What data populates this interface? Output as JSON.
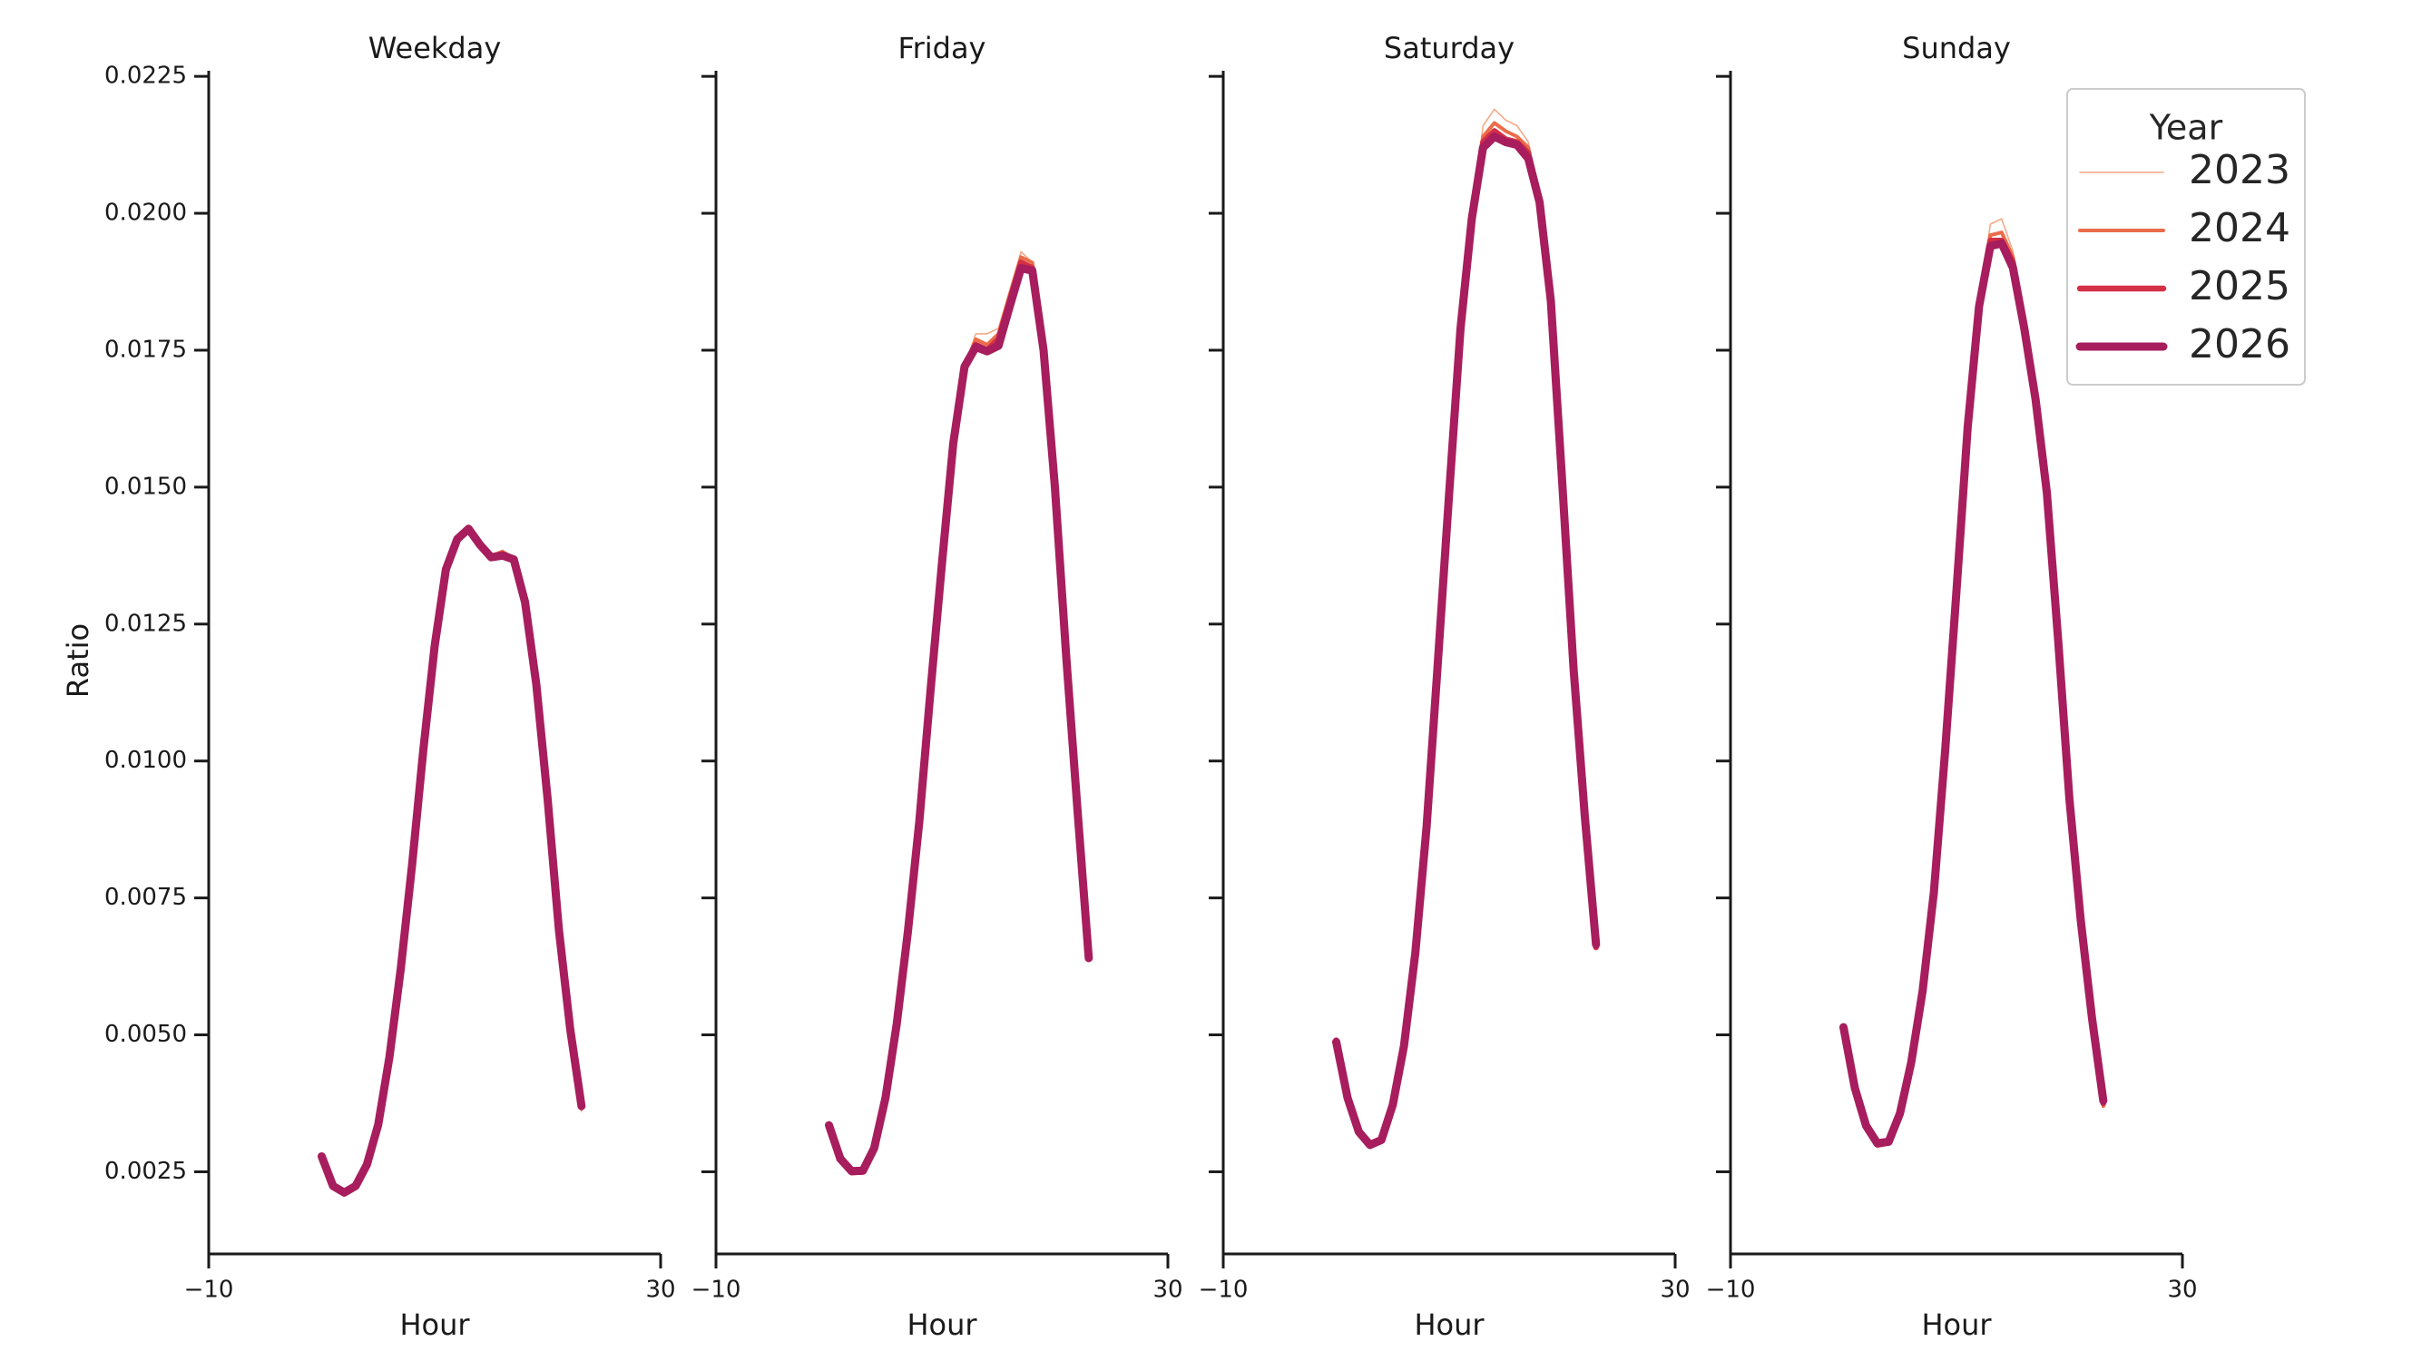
{
  "chart_data": {
    "type": "line",
    "ylabel": "Ratio",
    "xlabel": "Hour",
    "xlim": [
      -10,
      30
    ],
    "ylim": [
      0.001,
      0.0229
    ],
    "x_ticks": [
      -10,
      30
    ],
    "x_tick_labels": [
      "−10",
      "30"
    ],
    "y_ticks": [
      0.0025,
      0.005,
      0.0075,
      0.01,
      0.0125,
      0.015,
      0.0175,
      0.02,
      0.0225
    ],
    "y_tick_labels": [
      "0.0025",
      "0.0050",
      "0.0075",
      "0.0100",
      "0.0125",
      "0.0150",
      "0.0175",
      "0.0200",
      "0.0225"
    ],
    "grid": false,
    "legend": {
      "title": "Year",
      "placement": "top-right",
      "entries": [
        {
          "name": "2023",
          "color": "#f3a583",
          "width": 1.6
        },
        {
          "name": "2024",
          "color": "#ec6b49",
          "width": 4.0
        },
        {
          "name": "2025",
          "color": "#d42f45",
          "width": 6.5
        },
        {
          "name": "2026",
          "color": "#a71d5d",
          "width": 9.0
        }
      ]
    },
    "x": [
      0,
      1,
      2,
      3,
      4,
      5,
      6,
      7,
      8,
      9,
      10,
      11,
      12,
      13,
      14,
      15,
      16,
      17,
      18,
      19,
      20,
      21,
      22,
      23
    ],
    "panels": [
      {
        "title": "Weekday",
        "series": [
          {
            "name": "2023",
            "values": [
              0.0028,
              0.00228,
              0.00208,
              0.00222,
              0.00262,
              0.00338,
              0.0046,
              0.0062,
              0.0081,
              0.0102,
              0.0121,
              0.0135,
              0.01406,
              0.0142,
              0.014,
              0.01375,
              0.01385,
              0.0137,
              0.0128,
              0.0113,
              0.0093,
              0.0069,
              0.0051,
              0.0036
            ]
          },
          {
            "name": "2024",
            "values": [
              0.0028,
              0.00226,
              0.0021,
              0.00222,
              0.00262,
              0.00337,
              0.0046,
              0.0062,
              0.0081,
              0.0102,
              0.0121,
              0.0135,
              0.01406,
              0.01422,
              0.014,
              0.01375,
              0.01382,
              0.0137,
              0.0129,
              0.0114,
              0.0093,
              0.0069,
              0.0051,
              0.00365
            ]
          },
          {
            "name": "2025",
            "values": [
              0.00279,
              0.00225,
              0.00211,
              0.00223,
              0.00263,
              0.00337,
              0.0046,
              0.0062,
              0.0081,
              0.0102,
              0.0121,
              0.0135,
              0.01405,
              0.01423,
              0.01395,
              0.01373,
              0.01378,
              0.0137,
              0.0129,
              0.0114,
              0.0093,
              0.0069,
              0.0051,
              0.00368
            ]
          },
          {
            "name": "2026",
            "values": [
              0.00278,
              0.00224,
              0.00212,
              0.00224,
              0.00263,
              0.00336,
              0.0046,
              0.0062,
              0.0081,
              0.0102,
              0.0121,
              0.0135,
              0.01405,
              0.01424,
              0.01395,
              0.01372,
              0.01375,
              0.01368,
              0.0129,
              0.0114,
              0.0093,
              0.0069,
              0.0051,
              0.0037
            ]
          }
        ]
      },
      {
        "title": "Friday",
        "series": [
          {
            "name": "2023",
            "values": [
              0.0033,
              0.0027,
              0.00245,
              0.00248,
              0.00292,
              0.00385,
              0.0052,
              0.0069,
              0.0089,
              0.0113,
              0.0136,
              0.0158,
              0.0172,
              0.0178,
              0.0178,
              0.0179,
              0.0186,
              0.0193,
              0.0191,
              0.0176,
              0.0151,
              0.0119,
              0.0092,
              0.0064
            ]
          },
          {
            "name": "2024",
            "values": [
              0.0033,
              0.0027,
              0.00247,
              0.00249,
              0.00292,
              0.00385,
              0.0052,
              0.0069,
              0.0089,
              0.0113,
              0.0136,
              0.0158,
              0.0172,
              0.0177,
              0.0176,
              0.0178,
              0.0185,
              0.0192,
              0.0191,
              0.0176,
              0.0151,
              0.0119,
              0.0092,
              0.0064
            ]
          },
          {
            "name": "2025",
            "values": [
              0.00332,
              0.00272,
              0.00249,
              0.0025,
              0.00292,
              0.00385,
              0.0052,
              0.0069,
              0.0089,
              0.0113,
              0.0136,
              0.0158,
              0.0172,
              0.0176,
              0.0175,
              0.0177,
              0.0184,
              0.0191,
              0.019,
              0.0176,
              0.0151,
              0.0119,
              0.0092,
              0.0064
            ]
          },
          {
            "name": "2026",
            "values": [
              0.00335,
              0.00274,
              0.00251,
              0.00252,
              0.00293,
              0.00385,
              0.0052,
              0.0069,
              0.0089,
              0.0113,
              0.0136,
              0.0158,
              0.0172,
              0.01756,
              0.01748,
              0.01758,
              0.0183,
              0.019,
              0.01895,
              0.0175,
              0.015,
              0.0119,
              0.0091,
              0.0064
            ]
          }
        ]
      },
      {
        "title": "Saturday",
        "series": [
          {
            "name": "2023",
            "values": [
              0.0049,
              0.0038,
              0.0032,
              0.00295,
              0.00305,
              0.0037,
              0.0048,
              0.0065,
              0.0088,
              0.0118,
              0.0149,
              0.0179,
              0.0199,
              0.0216,
              0.0219,
              0.0217,
              0.0216,
              0.0213,
              0.0202,
              0.0184,
              0.0151,
              0.0117,
              0.009,
              0.0066
            ]
          },
          {
            "name": "2024",
            "values": [
              0.0049,
              0.0038,
              0.0032,
              0.00296,
              0.00305,
              0.0037,
              0.0048,
              0.0065,
              0.0088,
              0.0118,
              0.0149,
              0.0179,
              0.0199,
              0.0214,
              0.02165,
              0.0215,
              0.0214,
              0.0212,
              0.0202,
              0.0184,
              0.0151,
              0.0117,
              0.009,
              0.0066
            ]
          },
          {
            "name": "2025",
            "values": [
              0.0049,
              0.00385,
              0.00322,
              0.00298,
              0.00306,
              0.0037,
              0.0048,
              0.0065,
              0.0088,
              0.0118,
              0.0149,
              0.0179,
              0.0199,
              0.0213,
              0.0215,
              0.02135,
              0.0213,
              0.0211,
              0.0202,
              0.0184,
              0.0151,
              0.0117,
              0.009,
              0.0066
            ]
          },
          {
            "name": "2026",
            "values": [
              0.00487,
              0.00385,
              0.00323,
              0.00299,
              0.00308,
              0.00372,
              0.0048,
              0.0065,
              0.0088,
              0.0118,
              0.0149,
              0.0179,
              0.0199,
              0.0212,
              0.0214,
              0.0213,
              0.02125,
              0.021,
              0.0202,
              0.0184,
              0.0151,
              0.0117,
              0.009,
              0.00665
            ]
          }
        ]
      },
      {
        "title": "Sunday",
        "series": [
          {
            "name": "2023",
            "values": [
              0.0051,
              0.004,
              0.00332,
              0.00295,
              0.003,
              0.00355,
              0.0045,
              0.0058,
              0.0076,
              0.0102,
              0.0131,
              0.0161,
              0.0183,
              0.0198,
              0.0199,
              0.0193,
              0.0181,
              0.0166,
              0.0149,
              0.0122,
              0.0093,
              0.0071,
              0.0053,
              0.0037
            ]
          },
          {
            "name": "2024",
            "values": [
              0.0051,
              0.004,
              0.00332,
              0.00297,
              0.00301,
              0.00355,
              0.0045,
              0.0058,
              0.0076,
              0.0102,
              0.0131,
              0.0161,
              0.0183,
              0.0196,
              0.01965,
              0.0192,
              0.018,
              0.0166,
              0.0149,
              0.0122,
              0.0093,
              0.0071,
              0.0053,
              0.0037
            ]
          },
          {
            "name": "2025",
            "values": [
              0.00512,
              0.00402,
              0.00333,
              0.003,
              0.00303,
              0.00356,
              0.0045,
              0.0058,
              0.0076,
              0.0102,
              0.0131,
              0.0161,
              0.0183,
              0.0195,
              0.0195,
              0.0191,
              0.018,
              0.0166,
              0.0149,
              0.0122,
              0.0093,
              0.0071,
              0.0053,
              0.00375
            ]
          },
          {
            "name": "2026",
            "values": [
              0.00514,
              0.00403,
              0.00334,
              0.00302,
              0.00305,
              0.00357,
              0.0045,
              0.0058,
              0.0076,
              0.0102,
              0.0131,
              0.0161,
              0.0183,
              0.0194,
              0.01945,
              0.019,
              0.0179,
              0.0166,
              0.0149,
              0.0122,
              0.0093,
              0.0071,
              0.0053,
              0.0038
            ]
          }
        ]
      }
    ]
  }
}
